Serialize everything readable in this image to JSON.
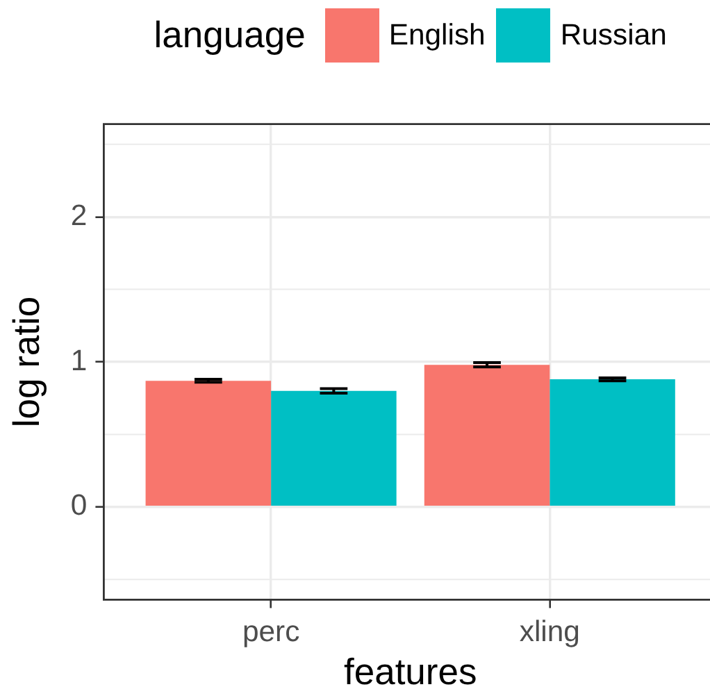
{
  "chart_data": {
    "type": "bar",
    "xlabel": "features",
    "ylabel": "log ratio",
    "legend_title": "language",
    "legend": "top",
    "grid": true,
    "categories": [
      "perc",
      "xling"
    ],
    "series": [
      {
        "name": "English",
        "color": "#f8766d",
        "values": [
          0.87,
          0.98
        ],
        "errors": [
          0.01,
          0.015
        ]
      },
      {
        "name": "Russian",
        "color": "#00bfc4",
        "values": [
          0.8,
          0.88
        ],
        "errors": [
          0.015,
          0.01
        ]
      }
    ],
    "ylim": [
      -0.64,
      2.64
    ],
    "yticks": [
      0,
      1,
      2
    ]
  }
}
